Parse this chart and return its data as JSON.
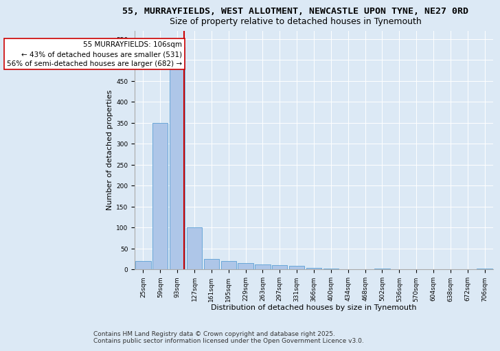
{
  "title_line1": "55, MURRAYFIELDS, WEST ALLOTMENT, NEWCASTLE UPON TYNE, NE27 0RD",
  "title_line2": "Size of property relative to detached houses in Tynemouth",
  "xlabel": "Distribution of detached houses by size in Tynemouth",
  "ylabel": "Number of detached properties",
  "categories": [
    "25sqm",
    "59sqm",
    "93sqm",
    "127sqm",
    "161sqm",
    "195sqm",
    "229sqm",
    "263sqm",
    "297sqm",
    "331sqm",
    "366sqm",
    "400sqm",
    "434sqm",
    "468sqm",
    "502sqm",
    "536sqm",
    "570sqm",
    "604sqm",
    "638sqm",
    "672sqm",
    "706sqm"
  ],
  "values": [
    20,
    350,
    530,
    100,
    25,
    20,
    15,
    12,
    10,
    8,
    3,
    1,
    0,
    0,
    1,
    0,
    0,
    0,
    0,
    0,
    1
  ],
  "bar_color": "#aec6e8",
  "bar_edge_color": "#5a9fd4",
  "red_line_x": 2.38,
  "red_line_label": "55 MURRAYFIELDS: 106sqm",
  "annotation_line2": "← 43% of detached houses are smaller (531)",
  "annotation_line3": "56% of semi-detached houses are larger (682) →",
  "red_line_color": "#cc0000",
  "ylim": [
    0,
    570
  ],
  "bg_color": "#dce9f5",
  "footer_line1": "Contains HM Land Registry data © Crown copyright and database right 2025.",
  "footer_line2": "Contains public sector information licensed under the Open Government Licence v3.0.",
  "title_fontsize": 9.5,
  "subtitle_fontsize": 9,
  "axis_label_fontsize": 8,
  "tick_fontsize": 6.5,
  "annotation_fontsize": 7.5,
  "footer_fontsize": 6.5,
  "grid_color": "#ffffff",
  "yticks": [
    0,
    50,
    100,
    150,
    200,
    250,
    300,
    350,
    400,
    450,
    500,
    550
  ]
}
